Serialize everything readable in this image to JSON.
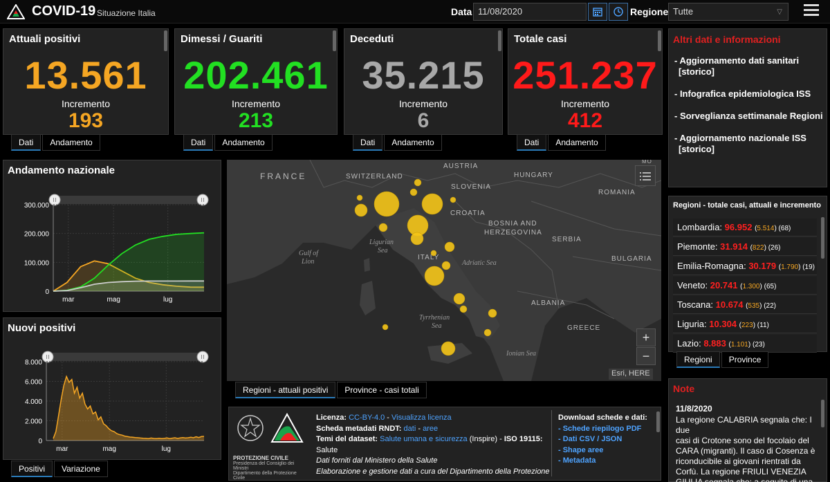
{
  "header": {
    "title": "COVID-19",
    "subtitle": "Situazione Italia",
    "date_label": "Data",
    "date_value": "11/08/2020",
    "region_label": "Regione",
    "region_value": "Tutte"
  },
  "stats": [
    {
      "title": "Attuali positivi",
      "value": "13.561",
      "inc_label": "Incremento",
      "increment": "193",
      "color": "#f5a623",
      "tabs": [
        "Dati",
        "Andamento"
      ]
    },
    {
      "title": "Dimessi / Guariti",
      "value": "202.461",
      "inc_label": "Incremento",
      "increment": "213",
      "color": "#22e022",
      "tabs": [
        "Dati",
        "Andamento"
      ]
    },
    {
      "title": "Deceduti",
      "value": "35.215",
      "inc_label": "Incremento",
      "increment": "6",
      "color": "#a8a8a8",
      "tabs": [
        "Dati",
        "Andamento"
      ]
    },
    {
      "title": "Totale casi",
      "value": "251.237",
      "inc_label": "Incremento",
      "increment": "412",
      "color": "#ff1a1a",
      "tabs": [
        "Dati",
        "Andamento"
      ]
    }
  ],
  "info": {
    "heading": "Altri dati e informazioni",
    "items": [
      {
        "line1": "- Aggiornamento dati sanitari",
        "line2": "[storico]"
      },
      {
        "line1": "- Infografica epidemiologica ISS",
        "line2": ""
      },
      {
        "line1": "- Sorveglianza settimanale Regioni",
        "line2": ""
      },
      {
        "line1": "- Aggiornamento nazionale ISS",
        "line2": "[storico]"
      }
    ]
  },
  "andamento": {
    "title": "Andamento nazionale",
    "y_ticks": [
      "300.000",
      "200.000",
      "100.000",
      "0"
    ],
    "x_ticks": [
      "mar",
      "mag",
      "lug"
    ]
  },
  "nuovi": {
    "title": "Nuovi positivi",
    "y_ticks": [
      "8.000",
      "6.000",
      "4.000",
      "2.000",
      "0"
    ],
    "x_ticks": [
      "mar",
      "mag",
      "lug"
    ],
    "tabs": [
      "Positivi",
      "Variazione"
    ]
  },
  "map": {
    "labels": {
      "france": "FRANCE",
      "switzerland": "SWITZERLAND",
      "austria": "AUSTRIA",
      "hungary": "HUNGARY",
      "slovenia": "SLOVENIA",
      "croatia": "CROATIA",
      "romania": "ROMANIA",
      "bosnia1": "BOSNIA AND",
      "bosnia2": "HERZEGOVINA",
      "serbia": "SERBIA",
      "bulgaria": "BULGARIA",
      "italy": "ITALY",
      "ligurian1": "Ligurian",
      "ligurian2": "Sea",
      "gulf1": "Gulf of",
      "gulf2": "Lion",
      "adriatic": "Adriatic Sea",
      "tyrrhenian1": "Tyrrhenian",
      "tyrrhenian2": "Sea",
      "albania": "ALBANIA",
      "greece": "GREECE",
      "ionian": "Ionian Sea",
      "corner": "MO"
    },
    "attribution": "Esri, HERE",
    "zoom_in": "+",
    "zoom_out": "−",
    "tabs": [
      "Regioni - attuali positivi",
      "Province - casi totali"
    ]
  },
  "regions": {
    "heading": "Regioni - totale casi, attuali e incremento",
    "rows": [
      {
        "name": "Lombardia:",
        "total": "96.952",
        "active": "5.514",
        "inc": "68"
      },
      {
        "name": "Piemonte:",
        "total": "31.914",
        "active": "822",
        "inc": "26"
      },
      {
        "name": "Emilia-Romagna:",
        "total": "30.179",
        "active": "1.790",
        "inc": "19"
      },
      {
        "name": "Veneto:",
        "total": "20.741",
        "active": "1.300",
        "inc": "65"
      },
      {
        "name": "Toscana:",
        "total": "10.674",
        "active": "535",
        "inc": "22"
      },
      {
        "name": "Liguria:",
        "total": "10.304",
        "active": "223",
        "inc": "11"
      },
      {
        "name": "Lazio:",
        "total": "8.883",
        "active": "1.101",
        "inc": "23"
      }
    ],
    "tabs": [
      "Regioni",
      "Province"
    ]
  },
  "note": {
    "heading": "Note",
    "date": "11/8/2020",
    "lines": [
      "La regione CALABRIA segnala che: I due",
      "casi di Crotone sono del focolaio del",
      "CARA (migranti). Il caso di Cosenza è",
      "riconducibile ai giovani rientrati da",
      "Corfù. La regione FRIULI VENEZIA",
      "GIULIA segnala che: a seguito di una"
    ]
  },
  "footer": {
    "logo_text1": "PROTEZIONE CIVILE",
    "logo_text2": "Presidenza del Consiglio dei Ministri",
    "logo_text3": "Dipartimento della Protezione Civile",
    "lic_label": "Licenza:",
    "lic_value": "CC-BY-4.0",
    "lic_link": "Visualizza licenza",
    "meta_label": "Scheda metadati RNDT:",
    "meta_dati": "dati",
    "meta_aree": "aree",
    "temi_label": "Temi del dataset:",
    "temi_value": "Salute umana e sicurezza",
    "temi_rest": "(Inspire) -",
    "iso": "ISO 19115:",
    "salute": "Salute",
    "fonte": "Dati forniti dal Ministero della Salute",
    "elab": "Elaborazione e gestione dati a cura del Dipartimento della Protezione",
    "dl_heading": "Download schede e dati:",
    "dl_items": [
      "- Schede riepilogo PDF",
      "- Dati CSV / JSON",
      "- Shape aree",
      "- Metadata"
    ]
  },
  "chart_data": [
    {
      "type": "line",
      "title": "Andamento nazionale",
      "x_ticks": [
        "mar",
        "mag",
        "lug"
      ],
      "ylim": [
        0,
        300000
      ],
      "series": [
        {
          "name": "Attuali positivi",
          "color": "#f5a623",
          "values": [
            0,
            30000,
            85000,
            105000,
            95000,
            70000,
            45000,
            30000,
            22000,
            17000,
            14000,
            13561
          ]
        },
        {
          "name": "Dimessi / Guariti",
          "color": "#22e022",
          "values": [
            0,
            3000,
            15000,
            45000,
            90000,
            130000,
            160000,
            180000,
            190000,
            197000,
            200000,
            202461
          ]
        },
        {
          "name": "Deceduti",
          "color": "#cccccc",
          "values": [
            0,
            2000,
            12000,
            24000,
            30000,
            33000,
            34500,
            35000,
            35100,
            35150,
            35200,
            35215
          ]
        }
      ]
    },
    {
      "type": "area",
      "title": "Nuovi positivi",
      "x_ticks": [
        "mar",
        "mag",
        "lug"
      ],
      "ylim": [
        0,
        8000
      ],
      "values": [
        200,
        900,
        2500,
        4200,
        5600,
        6500,
        5900,
        6200,
        4800,
        5400,
        4300,
        4800,
        3700,
        3200,
        3500,
        2700,
        2900,
        2100,
        2400,
        1700,
        1500,
        1200,
        1000,
        900,
        700,
        600,
        550,
        450,
        400,
        350,
        330,
        300,
        280,
        250,
        230,
        220,
        200,
        250,
        210,
        200,
        230,
        190,
        220,
        260,
        200,
        240,
        280,
        210,
        260,
        300,
        250,
        280,
        330,
        280,
        380,
        300,
        400,
        420
      ]
    }
  ]
}
